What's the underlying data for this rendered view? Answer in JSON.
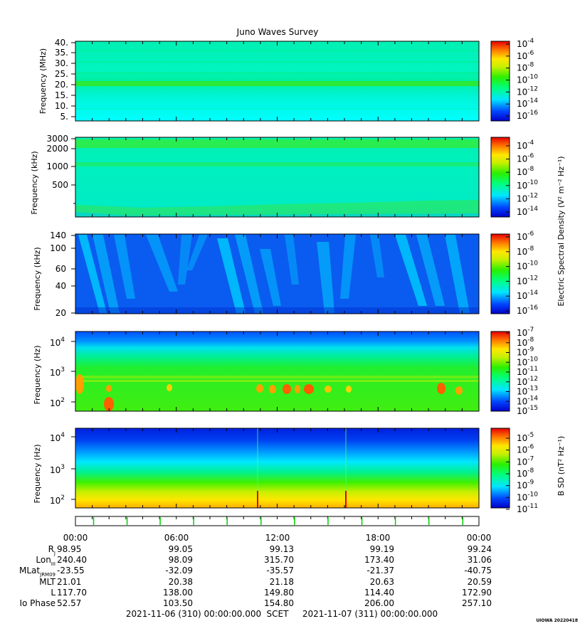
{
  "title": "Juno Waves Survey",
  "footer": {
    "start": "2021-11-06 (310) 00:00:00.000",
    "scet": "SCET",
    "end": "2021-11-07 (311) 00:00:00.000",
    "stamp": "UIOWA 20220418"
  },
  "colorbar_labels": {
    "electric": "Electric Spectral Density (V² m⁻² Hz⁻¹)",
    "magnetic": "B SD (nT² Hz⁻¹)"
  },
  "ephemeris": {
    "time_ticks": [
      "00:00",
      "06:00",
      "12:00",
      "18:00",
      "00:00"
    ],
    "rows": [
      {
        "label": "R",
        "sub": "J",
        "values": [
          "98.95",
          "99.05",
          "99.13",
          "99.19",
          "99.24"
        ]
      },
      {
        "label": "Lon",
        "sub": "III",
        "values": [
          "240.40",
          "98.09",
          "315.70",
          "173.40",
          "31.06"
        ]
      },
      {
        "label": "MLat",
        "sub": "JRM09",
        "values": [
          "-23.55",
          "-32.09",
          "-35.57",
          "-21.37",
          "-40.75"
        ]
      },
      {
        "label": "MLT",
        "sub": "",
        "values": [
          "21.01",
          "20.38",
          "21.18",
          "20.63",
          "20.59"
        ]
      },
      {
        "label": "L",
        "sub": "",
        "values": [
          "117.70",
          "138.00",
          "149.80",
          "114.40",
          "172.90"
        ]
      },
      {
        "label": "Io Phase",
        "sub": "",
        "values": [
          "52.57",
          "103.50",
          "154.80",
          "206.00",
          "257.10"
        ]
      }
    ]
  },
  "chart_data": [
    {
      "type": "heatmap",
      "id": "hfr-high",
      "ylabel": "Frequency (MHz)",
      "yticks": [
        "40.",
        "35.",
        "30.",
        "25.",
        "20.",
        "15.",
        "10.",
        "5."
      ],
      "cbar_ticks": [
        {
          "m": "10",
          "e": "-4"
        },
        {
          "m": "10",
          "e": "-6"
        },
        {
          "m": "10",
          "e": "-8"
        },
        {
          "m": "10",
          "e": "-10"
        },
        {
          "m": "10",
          "e": "-12"
        },
        {
          "m": "10",
          "e": "-14"
        },
        {
          "m": "10",
          "e": "-16"
        }
      ]
    },
    {
      "type": "heatmap",
      "id": "hfr-low",
      "ylabel": "Frequency (kHz)",
      "yticks": [
        "3000",
        "2000",
        "1000",
        "500"
      ],
      "cbar_ticks": [
        {
          "m": "10",
          "e": "-4"
        },
        {
          "m": "10",
          "e": "-6"
        },
        {
          "m": "10",
          "e": "-8"
        },
        {
          "m": "10",
          "e": "-10"
        },
        {
          "m": "10",
          "e": "-12"
        },
        {
          "m": "10",
          "e": "-14"
        }
      ]
    },
    {
      "type": "heatmap",
      "id": "lfr-high",
      "ylabel": "Frequency (kHz)",
      "yticks": [
        "140",
        "100",
        "60",
        "40",
        "20"
      ],
      "cbar_ticks": [
        {
          "m": "10",
          "e": "-6"
        },
        {
          "m": "10",
          "e": "-8"
        },
        {
          "m": "10",
          "e": "-10"
        },
        {
          "m": "10",
          "e": "-12"
        },
        {
          "m": "10",
          "e": "-14"
        },
        {
          "m": "10",
          "e": "-16"
        }
      ]
    },
    {
      "type": "heatmap",
      "id": "lfr-low-e",
      "ylabel": "Frequency (Hz)",
      "yticks": [
        {
          "m": "10",
          "e": "4"
        },
        {
          "m": "10",
          "e": "3"
        },
        {
          "m": "10",
          "e": "2"
        }
      ],
      "cbar_ticks": [
        {
          "m": "10",
          "e": "-7"
        },
        {
          "m": "10",
          "e": "-8"
        },
        {
          "m": "10",
          "e": "-9"
        },
        {
          "m": "10",
          "e": "-10"
        },
        {
          "m": "10",
          "e": "-11"
        },
        {
          "m": "10",
          "e": "-12"
        },
        {
          "m": "10",
          "e": "-13"
        },
        {
          "m": "10",
          "e": "-14"
        },
        {
          "m": "10",
          "e": "-15"
        }
      ]
    },
    {
      "type": "heatmap",
      "id": "lfr-low-b",
      "ylabel": "Frequency (Hz)",
      "yticks": [
        {
          "m": "10",
          "e": "4"
        },
        {
          "m": "10",
          "e": "3"
        },
        {
          "m": "10",
          "e": "2"
        }
      ],
      "cbar_ticks": [
        {
          "m": "10",
          "e": "-5"
        },
        {
          "m": "10",
          "e": "-6"
        },
        {
          "m": "10",
          "e": "-7"
        },
        {
          "m": "10",
          "e": "-8"
        },
        {
          "m": "10",
          "e": "-9"
        },
        {
          "m": "10",
          "e": "-10"
        },
        {
          "m": "10",
          "e": "-11"
        }
      ]
    }
  ]
}
